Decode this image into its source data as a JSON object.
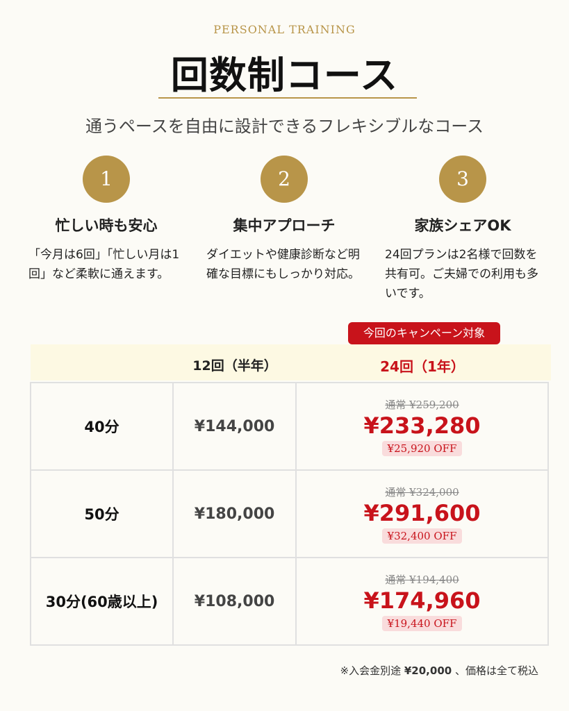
{
  "header": {
    "eyebrow": "PERSONAL TRAINING",
    "title": "回数制コース",
    "subtitle": "通うペースを自由に設計できるフレキシブルなコース"
  },
  "features": [
    {
      "number": "1",
      "title": "忙しい時も安心",
      "description": "「今月は6回」「忙しい月は1回」など柔軟に通えます。"
    },
    {
      "number": "2",
      "title": "集中アプローチ",
      "description": "ダイエットや健康診断など明確な目標にもしっかり対応。"
    },
    {
      "number": "3",
      "title": "家族シェアOK",
      "description": "24回プランは2名様で回数を共有可。ご夫婦での利用も多いです。"
    }
  ],
  "table": {
    "campaign_badge": "今回のキャンペーン対象",
    "columns": [
      "",
      "12回（半年）",
      "24回（1年）"
    ],
    "rows": [
      {
        "duration": "40分",
        "price_12": "¥144,000",
        "regular_24": "通常 ¥259,200",
        "sale_24": "¥233,280",
        "off_24": "¥25,920 OFF"
      },
      {
        "duration": "50分",
        "price_12": "¥180,000",
        "regular_24": "通常 ¥324,000",
        "sale_24": "¥291,600",
        "off_24": "¥32,400 OFF"
      },
      {
        "duration": "30分(60歳以上)",
        "price_12": "¥108,000",
        "regular_24": "通常 ¥194,400",
        "sale_24": "¥174,960",
        "off_24": "¥19,440 OFF"
      }
    ]
  },
  "footnote": {
    "prefix": "※入会金別途",
    "amount": "¥20,000",
    "suffix": "、価格は全て税込"
  },
  "colors": {
    "gold": "#b89549",
    "red": "#c8131b",
    "background": "#fcfbf6",
    "header_band": "#fdf9e3"
  }
}
